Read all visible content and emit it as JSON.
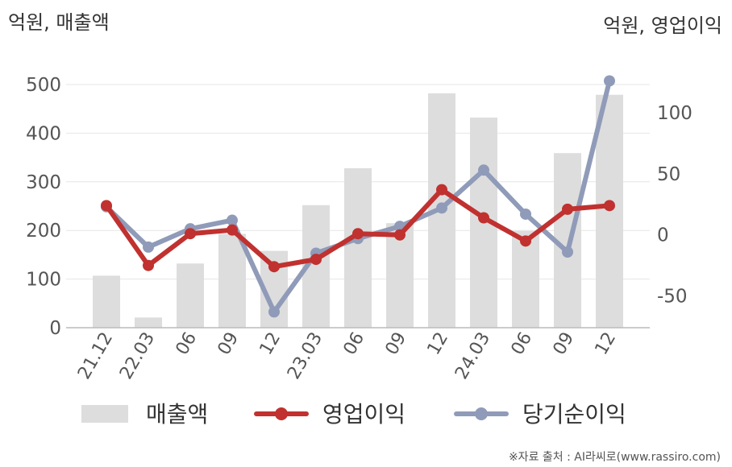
{
  "chart_data": {
    "type": "bar+line",
    "left_unit": "억원, 매출액",
    "right_unit": "억원, 영업이익",
    "categories": [
      "21.12",
      "22.03",
      "06",
      "09",
      "12",
      "23.03",
      "06",
      "09",
      "12",
      "24.03",
      "06",
      "09",
      "12"
    ],
    "left_axis": {
      "range": [
        0,
        500
      ],
      "ticks": [
        0,
        100,
        200,
        300,
        400,
        500
      ]
    },
    "right_axis": {
      "range": [
        -70,
        125
      ],
      "ticks": [
        -50,
        0,
        50,
        100
      ]
    },
    "series": [
      {
        "name": "매출액",
        "type": "bar",
        "axis": "left",
        "color": "#dddddd",
        "values": [
          107,
          21,
          132,
          193,
          158,
          252,
          328,
          215,
          482,
          432,
          199,
          359,
          479
        ]
      },
      {
        "name": "영업이익",
        "type": "line",
        "axis": "right",
        "color": "#c0312f",
        "values": [
          24,
          -25,
          1,
          4,
          -26,
          -20,
          1,
          0,
          37,
          14,
          -5,
          21,
          24
        ]
      },
      {
        "name": "당기순이익",
        "type": "line",
        "axis": "right",
        "color": "#8f9bb8",
        "values": [
          23,
          -10,
          5,
          12,
          -63,
          -15,
          -3,
          7,
          22,
          53,
          17,
          -14,
          126
        ]
      }
    ],
    "grid": "horizontal"
  },
  "source_note": "※자료 출처 : AI라씨로(www.rassiro.com)"
}
